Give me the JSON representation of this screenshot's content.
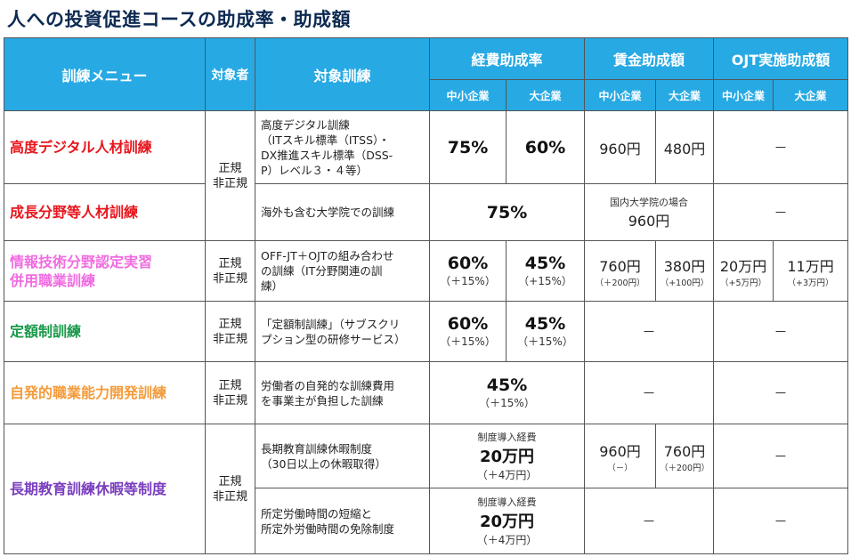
{
  "title": "人への投資促進コースの助成率・助成額",
  "header": {
    "menu": "訓練メニュー",
    "target": "対象者",
    "training": "対象訓練",
    "expense_rate": "経費助成率",
    "wage": "賃金助成額",
    "ojt": "OJT実施助成額",
    "sme": "中小企業",
    "large": "大企業"
  },
  "colors": {
    "header_bg": "#27a9e4",
    "row1": "#e8161d",
    "row2": "#e8161d",
    "row3": "#f06ce0",
    "row4": "#1a9a4a",
    "row5": "#f59b3a",
    "row6": "#7a3dbf"
  },
  "rows": [
    {
      "menu": "高度デジタル人材訓練",
      "target": "正規\n非正規",
      "training": "高度デジタル訓練\n（ITスキル標準（ITSS）・\nDX推進スキル標準（DSS-\nP）レベル３・４等）",
      "expense_sme": "75%",
      "expense_large": "60%",
      "wage_sme": "960円",
      "wage_large": "480円",
      "ojt": "－"
    },
    {
      "menu": "成長分野等人材訓練",
      "training": "海外も含む大学院での訓練",
      "expense": "75%",
      "wage_note": "国内大学院の場合",
      "wage": "960円",
      "ojt": "－"
    },
    {
      "menu": "情報技術分野認定実習\n併用職業訓練",
      "target": "正規\n非正規",
      "training": "OFF-JT＋OJTの組み合わせ\nの訓練（IT分野関連の訓\n練）",
      "expense_sme": "60%",
      "expense_sme_sub": "（＋15%）",
      "expense_large": "45%",
      "expense_large_sub": "（+15%）",
      "wage_sme": "760円",
      "wage_sme_sub": "（＋200円）",
      "wage_large": "380円",
      "wage_large_sub": "（+100円）",
      "ojt_sme": "20万円",
      "ojt_sme_sub": "（+5万円）",
      "ojt_large": "11万円",
      "ojt_large_sub": "（+3万円）"
    },
    {
      "menu": "定額制訓練",
      "target": "正規\n非正規",
      "training": "「定額制訓練」（サブスクリ\nプション型の研修サービス）",
      "expense_sme": "60%",
      "expense_sme_sub": "（＋15%）",
      "expense_large": "45%",
      "expense_large_sub": "（＋15%）",
      "wage": "－",
      "ojt": "－"
    },
    {
      "menu": "自発的職業能力開発訓練",
      "target": "正規\n非正規",
      "training": "労働者の自発的な訓練費用\nを事業主が負担した訓練",
      "expense": "45%",
      "expense_sub": "（＋15%）",
      "wage": "－",
      "ojt": "－"
    },
    {
      "menu": "長期教育訓練休暇等制度",
      "target": "正規\n非正規",
      "sub": [
        {
          "training": "長期教育訓練休暇制度\n（30日以上の休暇取得）",
          "expense_note": "制度導入経費",
          "expense": "20万円",
          "expense_sub": "（＋4万円）",
          "wage_sme": "960円",
          "wage_sme_sub": "（－）",
          "wage_large": "760円",
          "wage_large_sub": "（＋200円）",
          "ojt": "－"
        },
        {
          "training": "所定労働時間の短縮と\n所定外労働時間の免除制度",
          "expense_note": "制度導入経費",
          "expense": "20万円",
          "expense_sub": "（＋4万円）",
          "wage": "－",
          "ojt": "－"
        }
      ]
    }
  ]
}
